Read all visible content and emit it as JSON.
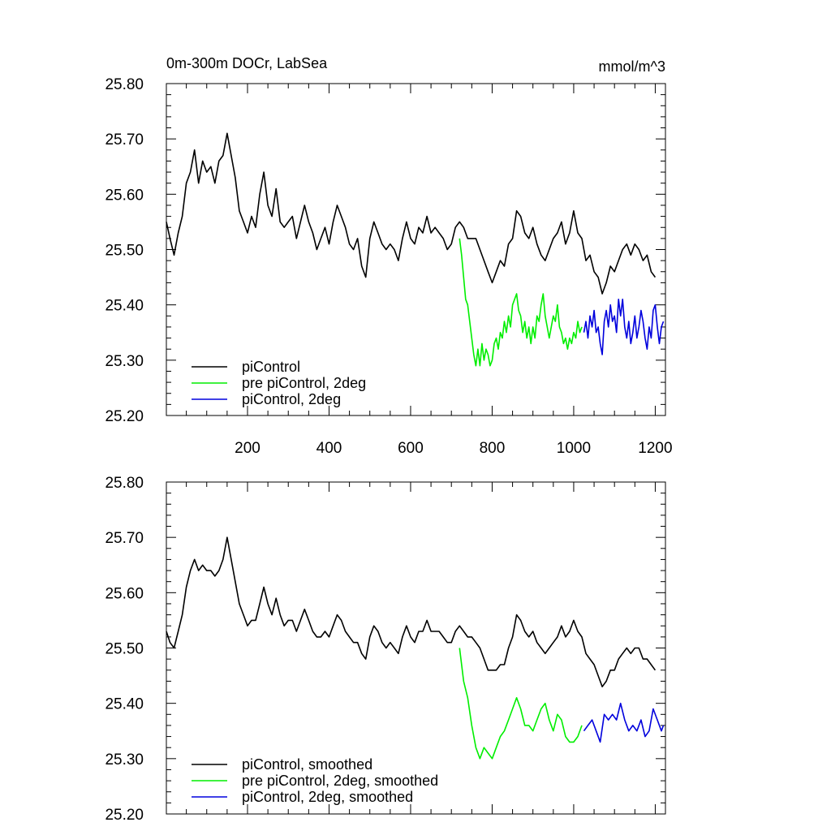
{
  "figure": {
    "title_left": "0m-300m DOCr, LabSea",
    "title_right": "mmol/m^3"
  },
  "chart_data": [
    {
      "type": "line",
      "panel": "top",
      "ylim": [
        25.2,
        25.8
      ],
      "xlim": [
        1,
        1225
      ],
      "yticks": [
        "25.20",
        "25.30",
        "25.40",
        "25.50",
        "25.60",
        "25.70",
        "25.80"
      ],
      "xticks": [
        "200",
        "400",
        "600",
        "800",
        "1000",
        "1200"
      ],
      "legend_position": "bottom-left",
      "series": [
        {
          "name": "piControl",
          "color": "#000000",
          "x": [
            1,
            10,
            20,
            30,
            40,
            50,
            60,
            70,
            80,
            90,
            100,
            110,
            120,
            130,
            140,
            150,
            160,
            170,
            180,
            190,
            200,
            210,
            220,
            230,
            240,
            250,
            260,
            270,
            280,
            290,
            300,
            310,
            320,
            330,
            340,
            350,
            360,
            370,
            380,
            390,
            400,
            410,
            420,
            430,
            440,
            450,
            460,
            470,
            480,
            490,
            500,
            510,
            520,
            530,
            540,
            550,
            560,
            570,
            580,
            590,
            600,
            610,
            620,
            630,
            640,
            650,
            660,
            670,
            680,
            690,
            700,
            710,
            720,
            730,
            740,
            750,
            760,
            770,
            780,
            790,
            800,
            810,
            820,
            830,
            840,
            850,
            860,
            870,
            880,
            890,
            900,
            910,
            920,
            930,
            940,
            950,
            960,
            970,
            980,
            990,
            1000,
            1010,
            1020,
            1030,
            1040,
            1050,
            1060,
            1070,
            1080,
            1090,
            1100,
            1110,
            1120,
            1130,
            1140,
            1150,
            1160,
            1170,
            1180,
            1190,
            1200
          ],
          "y": [
            25.55,
            25.52,
            25.49,
            25.53,
            25.56,
            25.62,
            25.64,
            25.68,
            25.62,
            25.66,
            25.64,
            25.65,
            25.62,
            25.66,
            25.67,
            25.71,
            25.67,
            25.63,
            25.57,
            25.55,
            25.53,
            25.56,
            25.54,
            25.6,
            25.64,
            25.58,
            25.56,
            25.61,
            25.55,
            25.54,
            25.55,
            25.56,
            25.52,
            25.55,
            25.58,
            25.55,
            25.53,
            25.5,
            25.52,
            25.54,
            25.51,
            25.55,
            25.58,
            25.56,
            25.54,
            25.51,
            25.5,
            25.52,
            25.47,
            25.45,
            25.52,
            25.55,
            25.53,
            25.51,
            25.5,
            25.51,
            25.5,
            25.48,
            25.52,
            25.55,
            25.52,
            25.51,
            25.54,
            25.53,
            25.56,
            25.53,
            25.54,
            25.53,
            25.52,
            25.5,
            25.51,
            25.54,
            25.55,
            25.54,
            25.52,
            25.52,
            25.52,
            25.5,
            25.48,
            25.46,
            25.44,
            25.46,
            25.48,
            25.47,
            25.51,
            25.52,
            25.57,
            25.56,
            25.53,
            25.52,
            25.54,
            25.51,
            25.49,
            25.48,
            25.5,
            25.52,
            25.53,
            25.55,
            25.51,
            25.53,
            25.57,
            25.53,
            25.52,
            25.48,
            25.49,
            25.46,
            25.45,
            25.42,
            25.44,
            25.47,
            25.46,
            25.48,
            25.5,
            25.51,
            25.49,
            25.51,
            25.5,
            25.48,
            25.49,
            25.46,
            25.45
          ]
        },
        {
          "name": "pre piControl, 2deg",
          "color": "#00ee00",
          "x": [
            720,
            725,
            730,
            735,
            740,
            745,
            750,
            755,
            760,
            765,
            770,
            775,
            780,
            785,
            790,
            795,
            800,
            805,
            810,
            815,
            820,
            825,
            830,
            835,
            840,
            845,
            850,
            855,
            860,
            865,
            870,
            875,
            880,
            885,
            890,
            895,
            900,
            905,
            910,
            915,
            920,
            925,
            930,
            935,
            940,
            945,
            950,
            955,
            960,
            965,
            970,
            975,
            980,
            985,
            990,
            995,
            1000,
            1005,
            1010,
            1015,
            1020
          ],
          "y": [
            25.52,
            25.49,
            25.45,
            25.41,
            25.4,
            25.37,
            25.34,
            25.31,
            25.29,
            25.32,
            25.29,
            25.33,
            25.3,
            25.32,
            25.31,
            25.29,
            25.3,
            25.33,
            25.34,
            25.32,
            25.35,
            25.34,
            25.37,
            25.35,
            25.38,
            25.36,
            25.4,
            25.41,
            25.42,
            25.39,
            25.38,
            25.35,
            25.37,
            25.34,
            25.36,
            25.33,
            25.36,
            25.34,
            25.38,
            25.37,
            25.4,
            25.42,
            25.38,
            25.36,
            25.34,
            25.36,
            25.38,
            25.37,
            25.4,
            25.36,
            25.35,
            25.33,
            25.34,
            25.32,
            25.34,
            25.33,
            25.35,
            25.34,
            25.37,
            25.35,
            25.36
          ]
        },
        {
          "name": "piControl, 2deg",
          "color": "#0000dd",
          "x": [
            1025,
            1030,
            1035,
            1040,
            1045,
            1050,
            1055,
            1060,
            1065,
            1070,
            1075,
            1080,
            1085,
            1090,
            1095,
            1100,
            1105,
            1110,
            1115,
            1120,
            1125,
            1130,
            1135,
            1140,
            1145,
            1150,
            1155,
            1160,
            1165,
            1170,
            1175,
            1180,
            1185,
            1190,
            1195,
            1200,
            1205,
            1210,
            1215,
            1220
          ],
          "y": [
            25.35,
            25.37,
            25.34,
            25.38,
            25.36,
            25.39,
            25.35,
            25.36,
            25.33,
            25.31,
            25.37,
            25.39,
            25.36,
            25.4,
            25.37,
            25.38,
            25.35,
            25.41,
            25.38,
            25.41,
            25.36,
            25.34,
            25.37,
            25.33,
            25.35,
            25.38,
            25.34,
            25.36,
            25.39,
            25.37,
            25.34,
            25.32,
            25.36,
            25.34,
            25.39,
            25.4,
            25.36,
            25.33,
            25.36,
            25.37
          ]
        }
      ]
    },
    {
      "type": "line",
      "panel": "bottom",
      "ylim": [
        25.2,
        25.8
      ],
      "xlim": [
        1,
        1225
      ],
      "yticks": [
        "25.20",
        "25.30",
        "25.40",
        "25.50",
        "25.60",
        "25.70",
        "25.80"
      ],
      "legend_position": "bottom-left",
      "series": [
        {
          "name": "piControl, smoothed",
          "color": "#000000",
          "x": [
            1,
            10,
            20,
            30,
            40,
            50,
            60,
            70,
            80,
            90,
            100,
            110,
            120,
            130,
            140,
            150,
            160,
            170,
            180,
            190,
            200,
            210,
            220,
            230,
            240,
            250,
            260,
            270,
            280,
            290,
            300,
            310,
            320,
            330,
            340,
            350,
            360,
            370,
            380,
            390,
            400,
            410,
            420,
            430,
            440,
            450,
            460,
            470,
            480,
            490,
            500,
            510,
            520,
            530,
            540,
            550,
            560,
            570,
            580,
            590,
            600,
            610,
            620,
            630,
            640,
            650,
            660,
            670,
            680,
            690,
            700,
            710,
            720,
            730,
            740,
            750,
            760,
            770,
            780,
            790,
            800,
            810,
            820,
            830,
            840,
            850,
            860,
            870,
            880,
            890,
            900,
            910,
            920,
            930,
            940,
            950,
            960,
            970,
            980,
            990,
            1000,
            1010,
            1020,
            1030,
            1040,
            1050,
            1060,
            1070,
            1080,
            1090,
            1100,
            1110,
            1120,
            1130,
            1140,
            1150,
            1160,
            1170,
            1180,
            1190,
            1200
          ],
          "y": [
            25.53,
            25.51,
            25.5,
            25.53,
            25.56,
            25.61,
            25.64,
            25.66,
            25.64,
            25.65,
            25.64,
            25.64,
            25.63,
            25.64,
            25.66,
            25.7,
            25.66,
            25.62,
            25.58,
            25.56,
            25.54,
            25.55,
            25.55,
            25.58,
            25.61,
            25.58,
            25.56,
            25.59,
            25.56,
            25.54,
            25.55,
            25.55,
            25.53,
            25.55,
            25.57,
            25.55,
            25.53,
            25.52,
            25.52,
            25.53,
            25.52,
            25.54,
            25.56,
            25.55,
            25.53,
            25.52,
            25.51,
            25.51,
            25.49,
            25.48,
            25.52,
            25.54,
            25.53,
            25.51,
            25.5,
            25.51,
            25.5,
            25.49,
            25.52,
            25.54,
            25.52,
            25.51,
            25.53,
            25.53,
            25.55,
            25.53,
            25.53,
            25.53,
            25.52,
            25.51,
            25.51,
            25.53,
            25.54,
            25.53,
            25.52,
            25.52,
            25.51,
            25.5,
            25.48,
            25.46,
            25.46,
            25.46,
            25.47,
            25.47,
            25.5,
            25.52,
            25.56,
            25.55,
            25.53,
            25.52,
            25.53,
            25.51,
            25.5,
            25.49,
            25.5,
            25.51,
            25.52,
            25.54,
            25.52,
            25.53,
            25.55,
            25.53,
            25.52,
            25.49,
            25.48,
            25.47,
            25.45,
            25.43,
            25.44,
            25.46,
            25.46,
            25.48,
            25.49,
            25.5,
            25.49,
            25.5,
            25.5,
            25.48,
            25.48,
            25.47,
            25.46
          ]
        },
        {
          "name": "pre piControl, 2deg, smoothed",
          "color": "#00ee00",
          "x": [
            720,
            730,
            740,
            750,
            760,
            770,
            780,
            790,
            800,
            810,
            820,
            830,
            840,
            850,
            860,
            870,
            880,
            890,
            900,
            910,
            920,
            930,
            940,
            950,
            960,
            970,
            980,
            990,
            1000,
            1010,
            1020
          ],
          "y": [
            25.5,
            25.44,
            25.41,
            25.36,
            25.32,
            25.3,
            25.32,
            25.31,
            25.3,
            25.32,
            25.34,
            25.35,
            25.37,
            25.39,
            25.41,
            25.39,
            25.36,
            25.36,
            25.35,
            25.37,
            25.39,
            25.4,
            25.37,
            25.35,
            25.38,
            25.37,
            25.34,
            25.33,
            25.33,
            25.34,
            25.36
          ]
        },
        {
          "name": "piControl, 2deg, smoothed",
          "color": "#0000dd",
          "x": [
            1025,
            1035,
            1045,
            1055,
            1065,
            1075,
            1085,
            1095,
            1105,
            1115,
            1125,
            1135,
            1145,
            1155,
            1165,
            1175,
            1185,
            1195,
            1205,
            1215,
            1220
          ],
          "y": [
            25.35,
            25.36,
            25.37,
            25.35,
            25.33,
            25.38,
            25.37,
            25.38,
            25.37,
            25.4,
            25.37,
            25.35,
            25.36,
            25.35,
            25.37,
            25.34,
            25.35,
            25.39,
            25.37,
            25.35,
            25.36
          ]
        }
      ]
    }
  ]
}
